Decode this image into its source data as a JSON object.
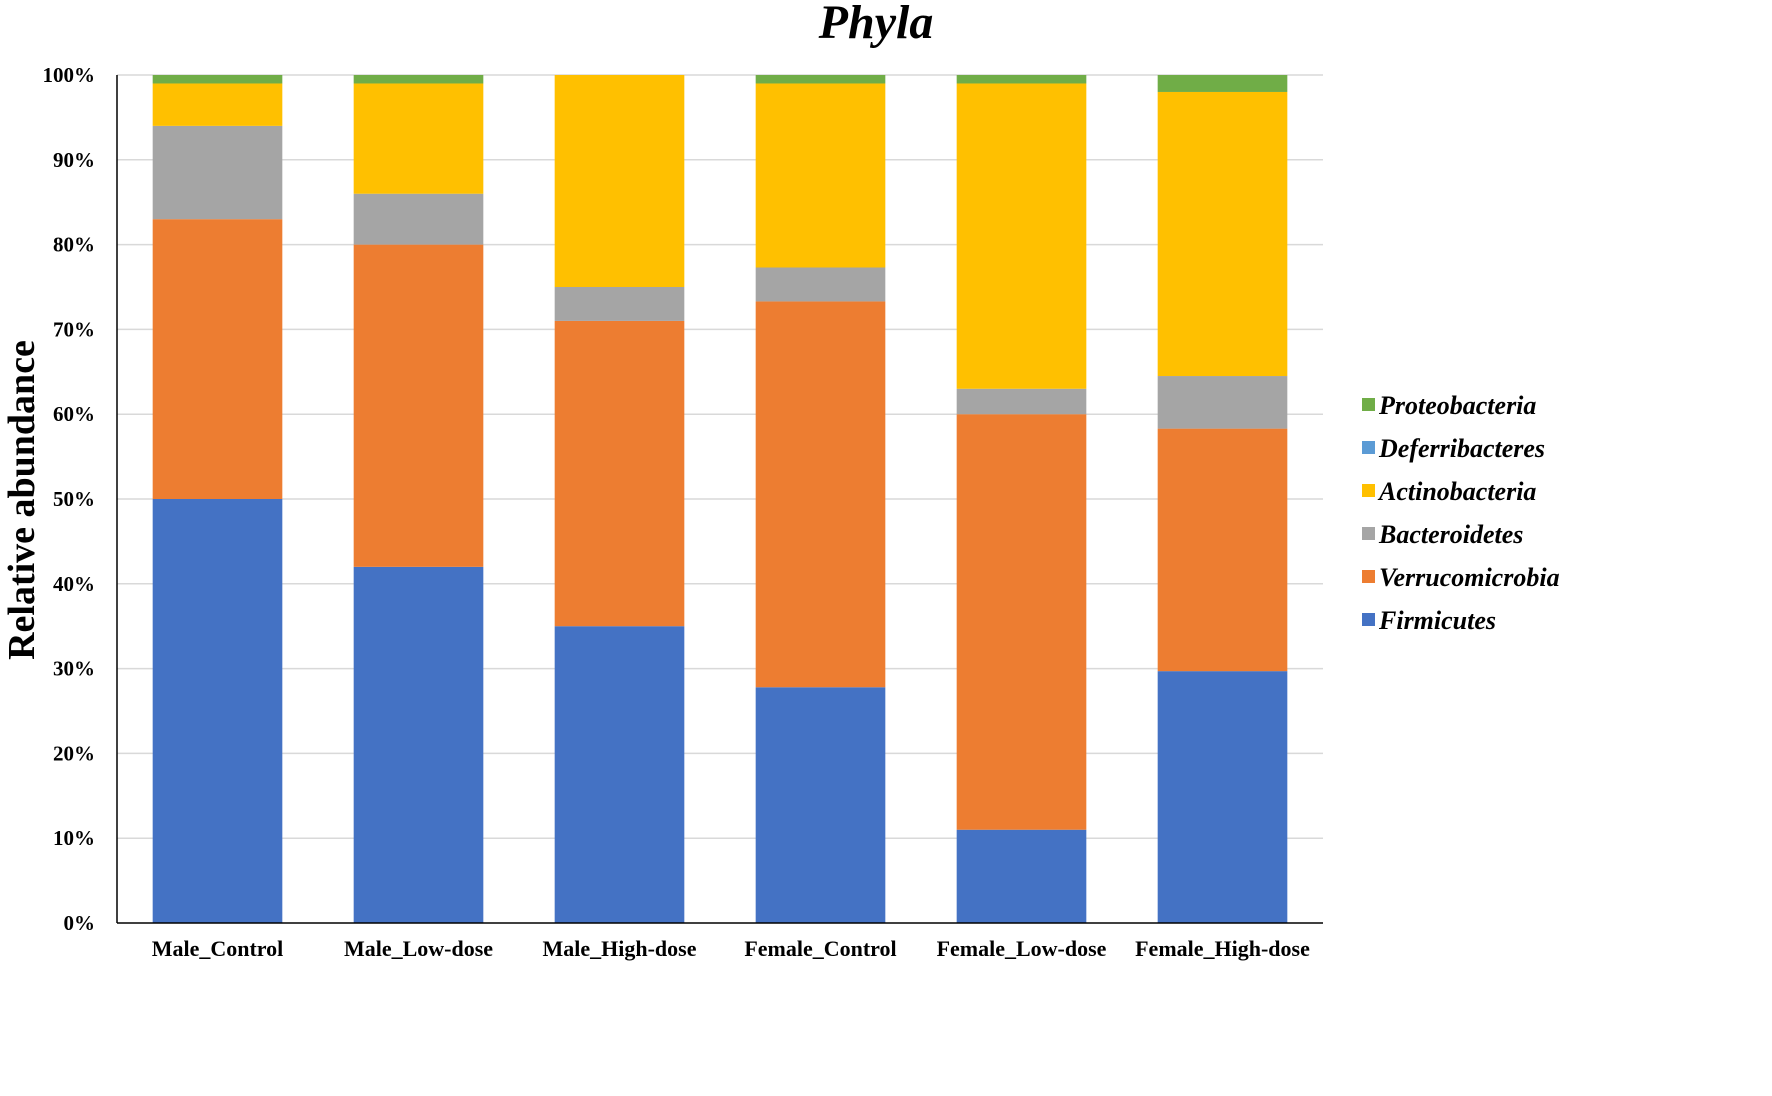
{
  "chart_data": {
    "type": "bar",
    "stacked": true,
    "title": "Phyla",
    "xlabel": "",
    "ylabel": "Relative abundance",
    "ylim": [
      0,
      100
    ],
    "y_ticks": [
      "0%",
      "10%",
      "20%",
      "30%",
      "40%",
      "50%",
      "60%",
      "70%",
      "80%",
      "90%",
      "100%"
    ],
    "grid": true,
    "legend_position": "right",
    "categories": [
      "Male_Control",
      "Male_Low-dose",
      "Male_High-dose",
      "Female_Control",
      "Female_Low-dose",
      "Female_High-dose"
    ],
    "series": [
      {
        "name": "Firmicutes",
        "color": "#4472C4",
        "values": [
          50,
          42,
          35,
          27.8,
          11,
          29.7
        ]
      },
      {
        "name": "Verrucomicrobia",
        "color": "#ED7D31",
        "values": [
          33,
          38,
          36,
          45.5,
          49,
          28.6
        ]
      },
      {
        "name": "Bacteroidetes",
        "color": "#A5A5A5",
        "values": [
          11,
          6,
          4,
          4,
          3,
          6.2
        ]
      },
      {
        "name": "Actinobacteria",
        "color": "#FFC000",
        "values": [
          5,
          13,
          25,
          21.7,
          36,
          33.5
        ]
      },
      {
        "name": "Deferribacteres",
        "color": "#5B9BD5",
        "values": [
          0,
          0,
          0,
          0,
          0,
          0
        ]
      },
      {
        "name": "Proteobacteria",
        "color": "#70AD47",
        "values": [
          1,
          1,
          0,
          1,
          1,
          2
        ]
      }
    ]
  }
}
